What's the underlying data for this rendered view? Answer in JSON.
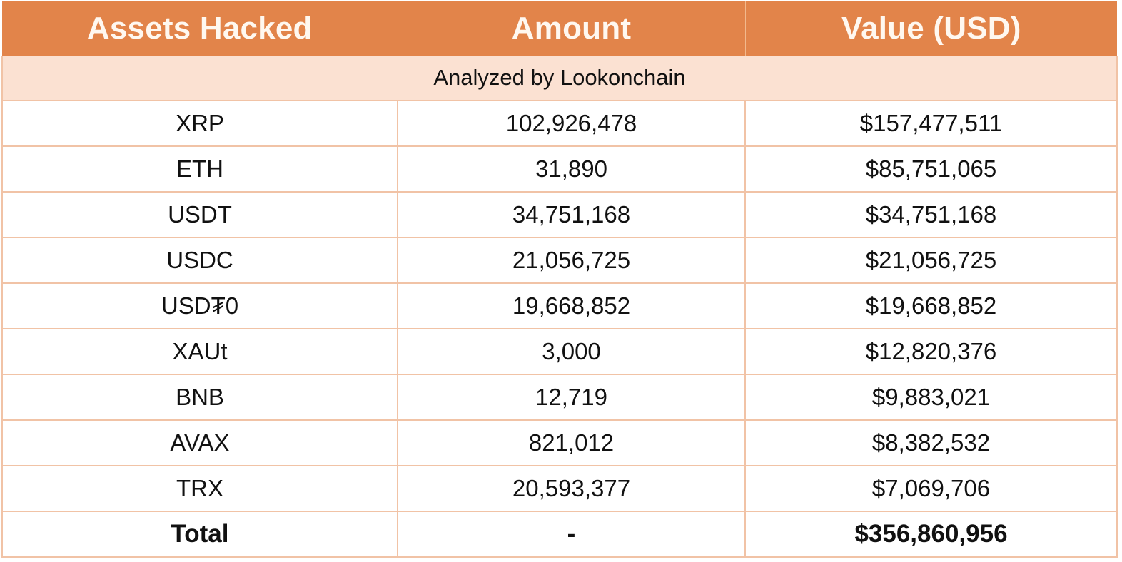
{
  "table": {
    "headers": [
      "Assets Hacked",
      "Amount",
      "Value (USD)"
    ],
    "subheader": "Analyzed by Lookonchain",
    "rows": [
      [
        "XRP",
        "102,926,478",
        "$157,477,511"
      ],
      [
        "ETH",
        "31,890",
        "$85,751,065"
      ],
      [
        "USDT",
        "34,751,168",
        "$34,751,168"
      ],
      [
        "USDC",
        "21,056,725",
        "$21,056,725"
      ],
      [
        "USD₮0",
        "19,668,852",
        "$19,668,852"
      ],
      [
        "XAUt",
        "3,000",
        "$12,820,376"
      ],
      [
        "BNB",
        "12,719",
        "$9,883,021"
      ],
      [
        "AVAX",
        "821,012",
        "$8,382,532"
      ],
      [
        "TRX",
        "20,593,377",
        "$7,069,706"
      ]
    ],
    "total": [
      "Total",
      "-",
      "$356,860,956"
    ]
  },
  "colors": {
    "header_bg": "#e2844a",
    "subheader_bg": "#fbe1d2",
    "border": "#f1c3a6"
  }
}
